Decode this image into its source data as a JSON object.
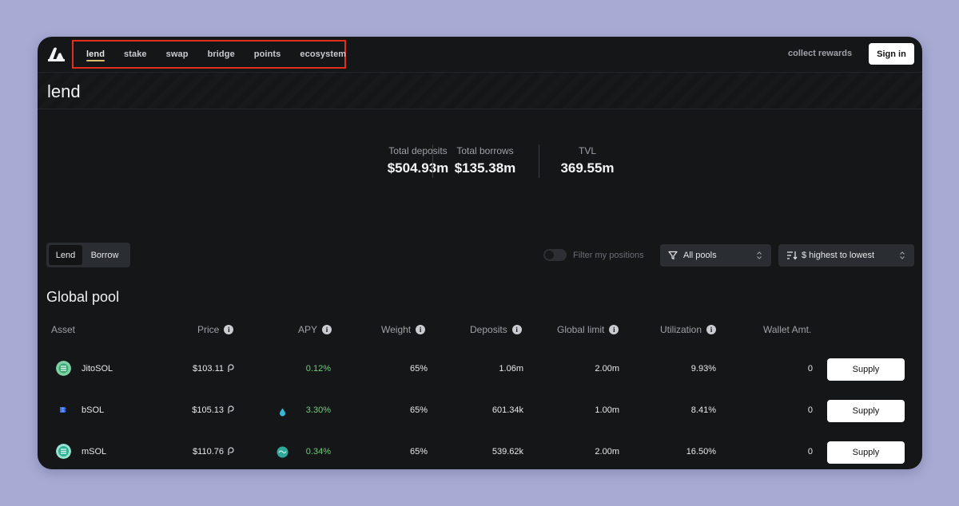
{
  "nav": {
    "items": [
      {
        "label": "lend",
        "active": true
      },
      {
        "label": "stake",
        "active": false
      },
      {
        "label": "swap",
        "active": false
      },
      {
        "label": "bridge",
        "active": false
      },
      {
        "label": "points",
        "active": false
      },
      {
        "label": "ecosystem",
        "active": false
      }
    ],
    "collect_rewards": "collect rewards",
    "sign_in": "Sign in"
  },
  "page": {
    "title": "lend"
  },
  "stats": [
    {
      "label": "Total deposits",
      "value": "$504.93m"
    },
    {
      "label": "Total borrows",
      "value": "$135.38m"
    },
    {
      "label": "TVL",
      "value": "369.55m"
    }
  ],
  "controls": {
    "mode_options": [
      "Lend",
      "Borrow"
    ],
    "mode_selected": "Lend",
    "filter_label": "Filter my positions",
    "pool_select": "All pools",
    "sort_select": "$ highest to lowest"
  },
  "section": {
    "title": "Global pool"
  },
  "table": {
    "headers": [
      "Asset",
      "Price",
      "APY",
      "Weight",
      "Deposits",
      "Global limit",
      "Utilization",
      "Wallet Amt."
    ],
    "rows": [
      {
        "asset": "JitoSOL",
        "price": "$103.11",
        "apy": "0.12%",
        "weight": "65%",
        "deposits": "1.06m",
        "global_limit": "2.00m",
        "utilization": "9.93%",
        "wallet": "0",
        "action": "Supply",
        "icon": "jitosol-icon"
      },
      {
        "asset": "bSOL",
        "price": "$105.13",
        "apy": "3.30%",
        "weight": "65%",
        "deposits": "601.34k",
        "global_limit": "1.00m",
        "utilization": "8.41%",
        "wallet": "0",
        "action": "Supply",
        "icon": "bsol-icon"
      },
      {
        "asset": "mSOL",
        "price": "$110.76",
        "apy": "0.34%",
        "weight": "65%",
        "deposits": "539.62k",
        "global_limit": "2.00m",
        "utilization": "16.50%",
        "wallet": "0",
        "action": "Supply",
        "icon": "msol-icon"
      }
    ]
  },
  "colors": {
    "accent_underline": "#dcc06f",
    "highlight_box": "#e2301f",
    "apy_positive": "#6fcf7b",
    "background": "#a7abd3",
    "panel": "#141618"
  }
}
